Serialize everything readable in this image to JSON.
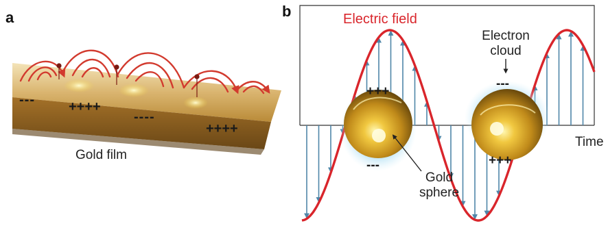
{
  "panel_a": {
    "label": "a",
    "film_label": "Gold film",
    "charges": [
      "---",
      "++++",
      "----",
      "++++"
    ]
  },
  "panel_b": {
    "label": "b",
    "field_label": "Electric field",
    "cloud_label_line1": "Electron",
    "cloud_label_line2": "cloud",
    "sphere_label_line1": "Gold",
    "sphere_label_line2": "sphere",
    "axis_label": "Time",
    "sphere1_top_charge": "+++",
    "sphere1_bottom_charge": "---",
    "sphere2_top_charge": "---",
    "sphere2_bottom_charge": "+++"
  },
  "colors": {
    "field_curve": "#d9252b",
    "field_arrows": "#4f86a8",
    "gold": "#d8a52a",
    "film_top": "#c9a050",
    "film_side": "#8a5e22",
    "electron_cloud": "#7fc8e8",
    "plasmon_arcs": "#d23a2e"
  }
}
